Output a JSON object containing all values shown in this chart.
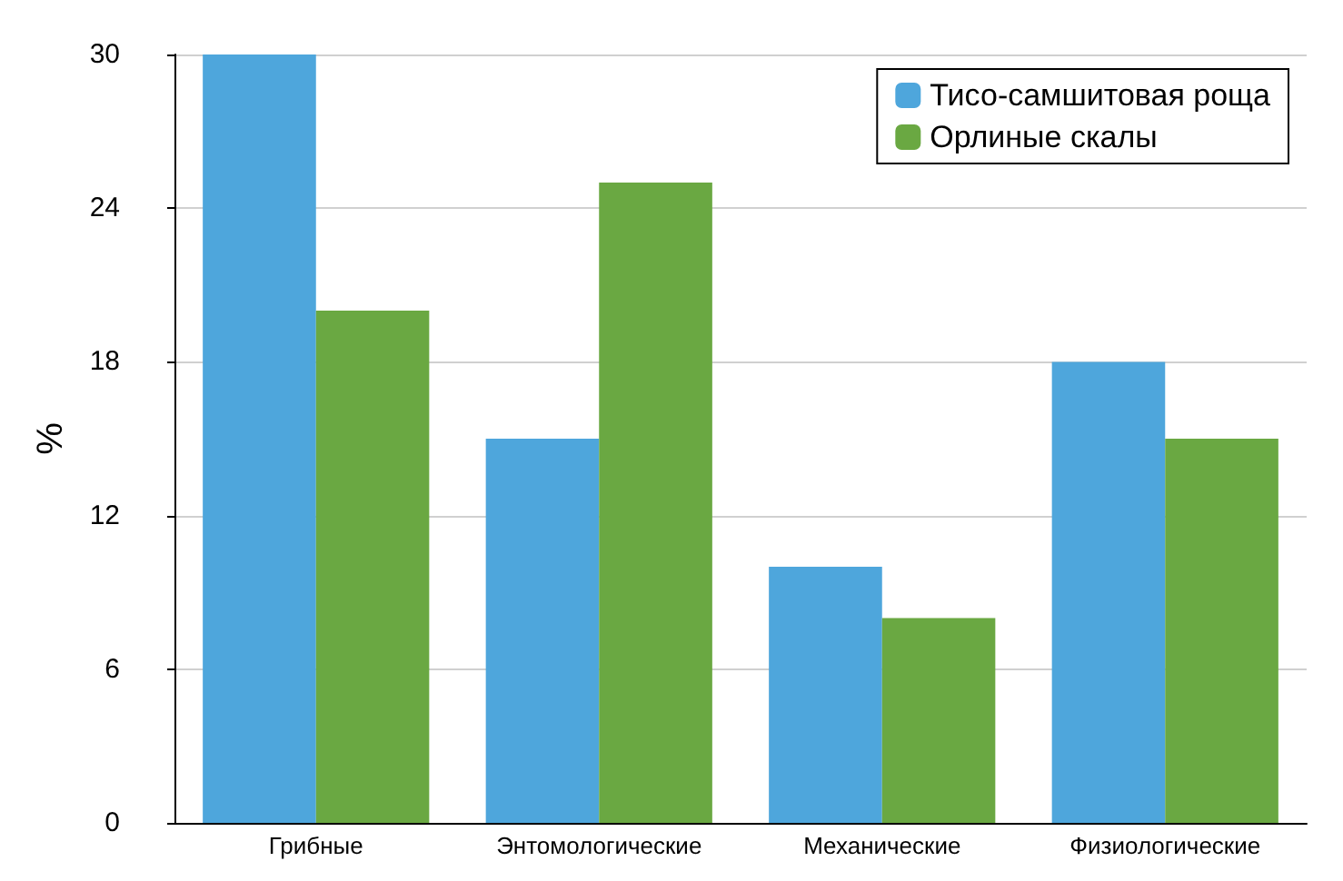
{
  "chart_data": {
    "type": "bar",
    "ylabel": "%",
    "categories": [
      "Грибные",
      "Энтомологические",
      "Механические",
      "Физиологические"
    ],
    "series": [
      {
        "name": "Тисо-самшитовая роща",
        "color": "#4ea6dc",
        "values": [
          30,
          15,
          10,
          18
        ]
      },
      {
        "name": "Орлиные скалы",
        "color": "#6aa842",
        "values": [
          20,
          25,
          8,
          15
        ]
      }
    ],
    "ylim": [
      0,
      30
    ],
    "yticks": [
      0,
      6,
      12,
      18,
      24,
      30
    ],
    "grid": "y",
    "legend": "top right"
  }
}
